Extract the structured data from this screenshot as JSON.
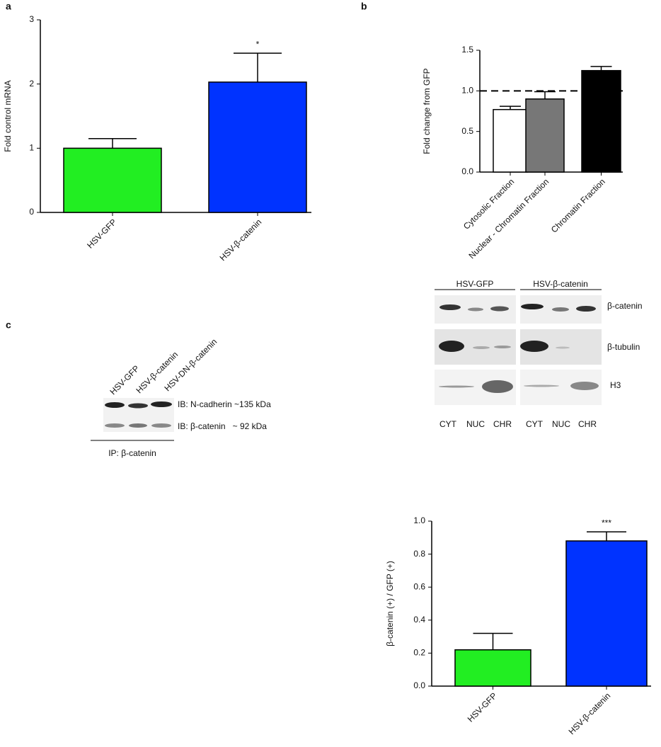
{
  "chart_data": [
    {
      "type": "bar",
      "y_label": "Fold control mRNA",
      "categories": [
        "HSV-GFP",
        "HSV-β-catenin"
      ],
      "values": [
        1.0,
        2.03
      ],
      "errors": [
        0.15,
        0.45
      ],
      "annotations": [
        null,
        "*"
      ],
      "colors": [
        "#22ee22",
        "#0033ff"
      ],
      "ylim": [
        0,
        3
      ],
      "yticks": [
        0,
        1,
        2,
        3
      ]
    },
    {
      "type": "bar",
      "y_label": "Fold change from GFP",
      "categories": [
        "Cytosolic Fraction",
        "Nuclear - Chromatin Fraction",
        "Chromatin Fraction"
      ],
      "values": [
        0.77,
        0.9,
        1.25
      ],
      "errors": [
        0.04,
        0.09,
        0.05
      ],
      "colors": [
        "#ffffff",
        "#777777",
        "#000000"
      ],
      "reference_line": 1.0,
      "ylim": [
        0,
        1.5
      ],
      "yticks": [
        {
          "value": 0,
          "label": "0.0"
        },
        {
          "value": 0.5,
          "label": "0.5"
        },
        {
          "value": 1,
          "label": "1.0"
        },
        {
          "value": 1.5,
          "label": "1.5"
        }
      ]
    },
    {
      "type": "bar",
      "y_label": "β-catenin (+) / GFP (+)",
      "categories": [
        "HSV-GFP",
        "HSV-β-catenin"
      ],
      "values": [
        0.22,
        0.88
      ],
      "errors": [
        0.1,
        0.055
      ],
      "annotations": [
        null,
        "***"
      ],
      "colors": [
        "#22ee22",
        "#0033ff"
      ],
      "ylim": [
        0,
        1.0
      ],
      "yticks": [
        {
          "value": 0,
          "label": "0.0"
        },
        {
          "value": 0.2,
          "label": "0.2"
        },
        {
          "value": 0.4,
          "label": "0.4"
        },
        {
          "value": 0.6,
          "label": "0.6"
        },
        {
          "value": 0.8,
          "label": "0.8"
        },
        {
          "value": 1,
          "label": "1.0"
        }
      ]
    }
  ],
  "panel_labels": [
    "a",
    "b",
    "c"
  ],
  "blot_b": {
    "groups": [
      "HSV-GFP",
      "HSV-β-catenin"
    ],
    "rows": [
      "β-catenin",
      "β-tubulin",
      "H3"
    ],
    "lanes": [
      "CYT",
      "NUC",
      "CHR",
      "CYT",
      "NUC",
      "CHR"
    ]
  },
  "blot_c": {
    "lanes": [
      "HSV-GFP",
      "HSV-β-catenin",
      "HSV-DN-β-catenin"
    ],
    "rows": [
      "IB: N-cadherin ~135 kDa",
      "IB: β-catenin   ~ 92 kDa"
    ],
    "footer": "IP: β-catenin"
  }
}
